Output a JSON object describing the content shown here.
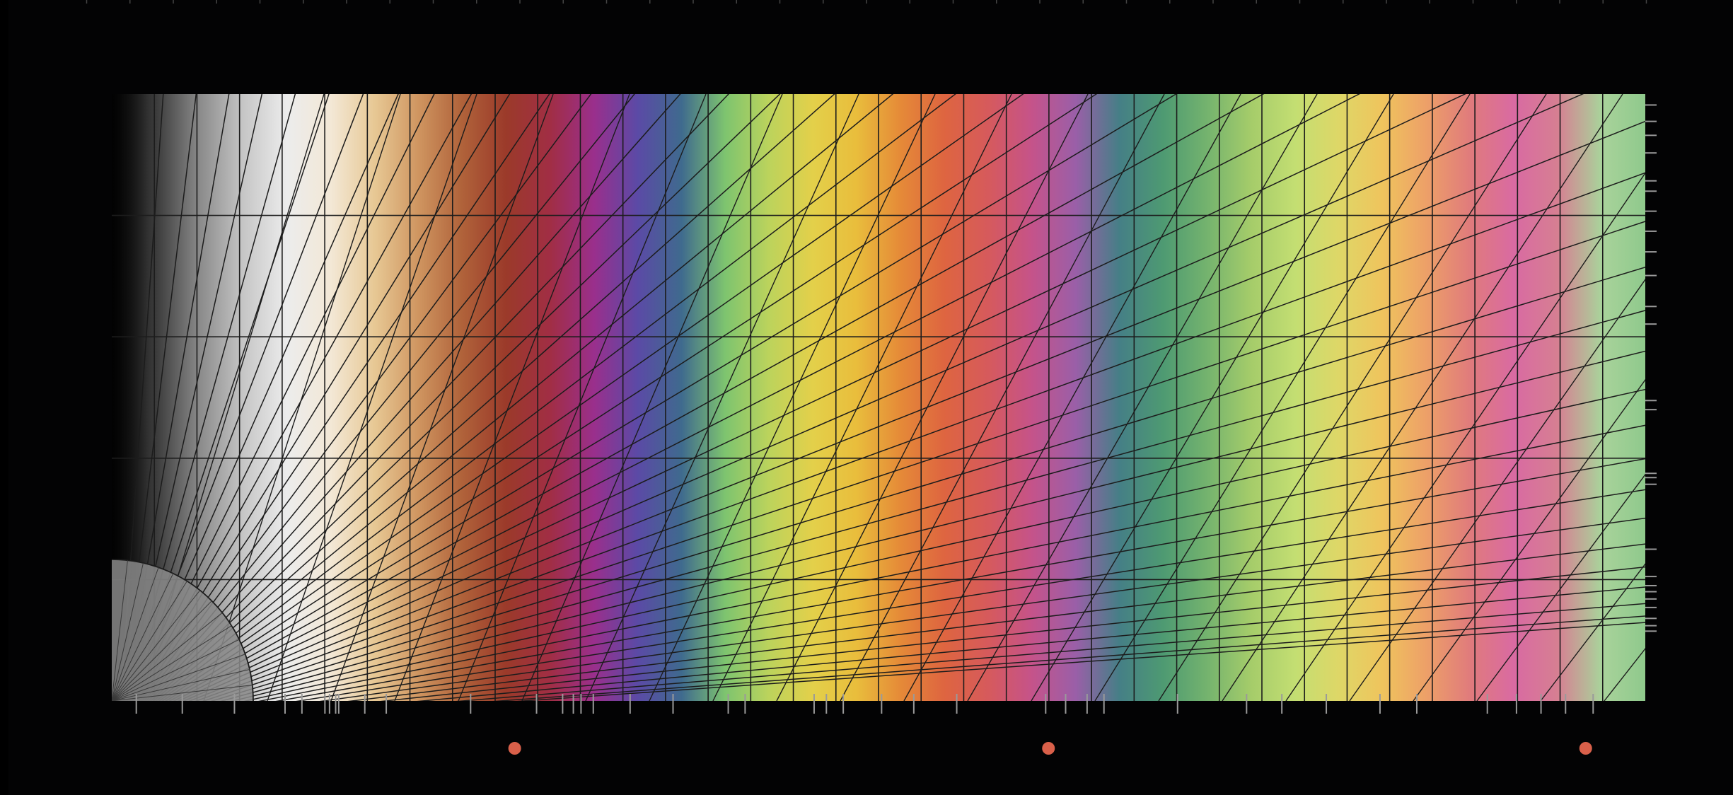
{
  "canvas": {
    "background": "#030304",
    "grid_line_color": "#1c1c1c",
    "tick_color": "#9a9a9a",
    "marker_color": "#d9604a"
  },
  "color_bands": [
    {
      "color": "#0c0c0c"
    },
    {
      "color": "#3a3a3a"
    },
    {
      "color": "#8a8a8a"
    },
    {
      "color": "#c6c6c6"
    },
    {
      "color": "#ececec"
    },
    {
      "color": "#f3e8d6"
    },
    {
      "color": "#e7c894"
    },
    {
      "color": "#cf9560"
    },
    {
      "color": "#b0623a"
    },
    {
      "color": "#9b3a2a"
    },
    {
      "color": "#a12e44"
    },
    {
      "color": "#9a2f8c"
    },
    {
      "color": "#5b4aa6"
    },
    {
      "color": "#3f6a8e"
    },
    {
      "color": "#7ec46f"
    },
    {
      "color": "#bcd35c"
    },
    {
      "color": "#e3d04a"
    },
    {
      "color": "#e9bd3c"
    },
    {
      "color": "#e58a38"
    },
    {
      "color": "#de6540"
    },
    {
      "color": "#d65a5c"
    },
    {
      "color": "#c5538a"
    },
    {
      "color": "#9a5fa8"
    },
    {
      "color": "#457f86"
    },
    {
      "color": "#4e9a72"
    },
    {
      "color": "#74b36e"
    },
    {
      "color": "#a5cc6a"
    },
    {
      "color": "#c3de72"
    },
    {
      "color": "#ded767"
    },
    {
      "color": "#efc45d"
    },
    {
      "color": "#eda068"
    },
    {
      "color": "#e07b7c"
    },
    {
      "color": "#d96aa2"
    },
    {
      "color": "#d67f92"
    },
    {
      "color": "#a9d39b"
    },
    {
      "color": "#8fc98c"
    }
  ],
  "vertical_grid_count": 36,
  "horizontal_grid_count": 5,
  "fan_ray_count": 44,
  "bottom_ticks": [
    0.016,
    0.046,
    0.08,
    0.113,
    0.124,
    0.139,
    0.142,
    0.146,
    0.148,
    0.165,
    0.179,
    0.234,
    0.277,
    0.294,
    0.301,
    0.306,
    0.314,
    0.338,
    0.366,
    0.402,
    0.413,
    0.458,
    0.466,
    0.477,
    0.502,
    0.523,
    0.551,
    0.609,
    0.622,
    0.636,
    0.647,
    0.695,
    0.74,
    0.763,
    0.792,
    0.827,
    0.851,
    0.897,
    0.916,
    0.932,
    0.948,
    0.966
  ],
  "right_ticks": [
    0.018,
    0.045,
    0.068,
    0.097,
    0.143,
    0.16,
    0.193,
    0.226,
    0.26,
    0.299,
    0.35,
    0.379,
    0.505,
    0.52,
    0.625,
    0.632,
    0.643,
    0.75,
    0.795,
    0.81,
    0.82,
    0.832,
    0.846,
    0.864,
    0.876,
    0.885
  ],
  "top_ticks": [
    0.05,
    0.075,
    0.1,
    0.125,
    0.15,
    0.175,
    0.2,
    0.225,
    0.25,
    0.275,
    0.3,
    0.325,
    0.35,
    0.375,
    0.4,
    0.425,
    0.45,
    0.475,
    0.5,
    0.525,
    0.55,
    0.575,
    0.6,
    0.625,
    0.65,
    0.675,
    0.7,
    0.725,
    0.75,
    0.775,
    0.8,
    0.825,
    0.85,
    0.875,
    0.9,
    0.925,
    0.95
  ],
  "markers": [
    {
      "name": "marker-left",
      "position": 0.297
    },
    {
      "name": "marker-center",
      "position": 0.605
    },
    {
      "name": "marker-right",
      "position": 0.915
    }
  ]
}
